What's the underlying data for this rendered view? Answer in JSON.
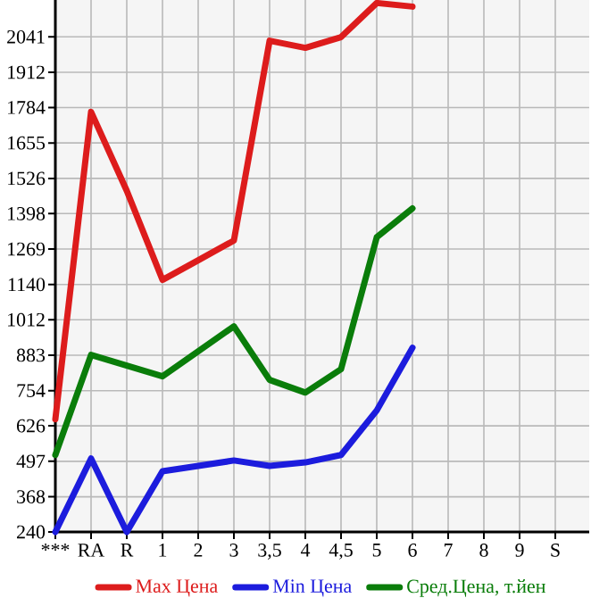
{
  "chart_data": {
    "type": "line",
    "categories": [
      "***",
      "RA",
      "R",
      "1",
      "2",
      "3",
      "3,5",
      "4",
      "4,5",
      "5",
      "6",
      "7",
      "8",
      "9",
      "S"
    ],
    "series": [
      {
        "name": "Max Цена",
        "color": "#dd1c1c",
        "values": [
          650,
          1768,
          1481,
          1157,
          1228,
          1300,
          2027,
          2001,
          2040,
          2164,
          2151,
          null,
          null,
          null,
          null
        ]
      },
      {
        "name": "Min Цена",
        "color": "#1c1cdd",
        "values": [
          240,
          507,
          240,
          461,
          480,
          500,
          480,
          493,
          520,
          682,
          910,
          null,
          null,
          null,
          null
        ]
      },
      {
        "name": "Сред.Цена, т.йен",
        "color": "#0a7d0a",
        "values": [
          520,
          884,
          845,
          806,
          897,
          988,
          793,
          747,
          832,
          1312,
          1417,
          null,
          null,
          null,
          null
        ]
      }
    ],
    "ylim": [
      240,
      2175
    ],
    "yticks": [
      240,
      368,
      497,
      626,
      754,
      883,
      1012,
      1140,
      1269,
      1398,
      1526,
      1655,
      1784,
      1912,
      2041
    ],
    "grid": true,
    "legend": "bottom",
    "marker": "none",
    "line_style": "solid"
  }
}
